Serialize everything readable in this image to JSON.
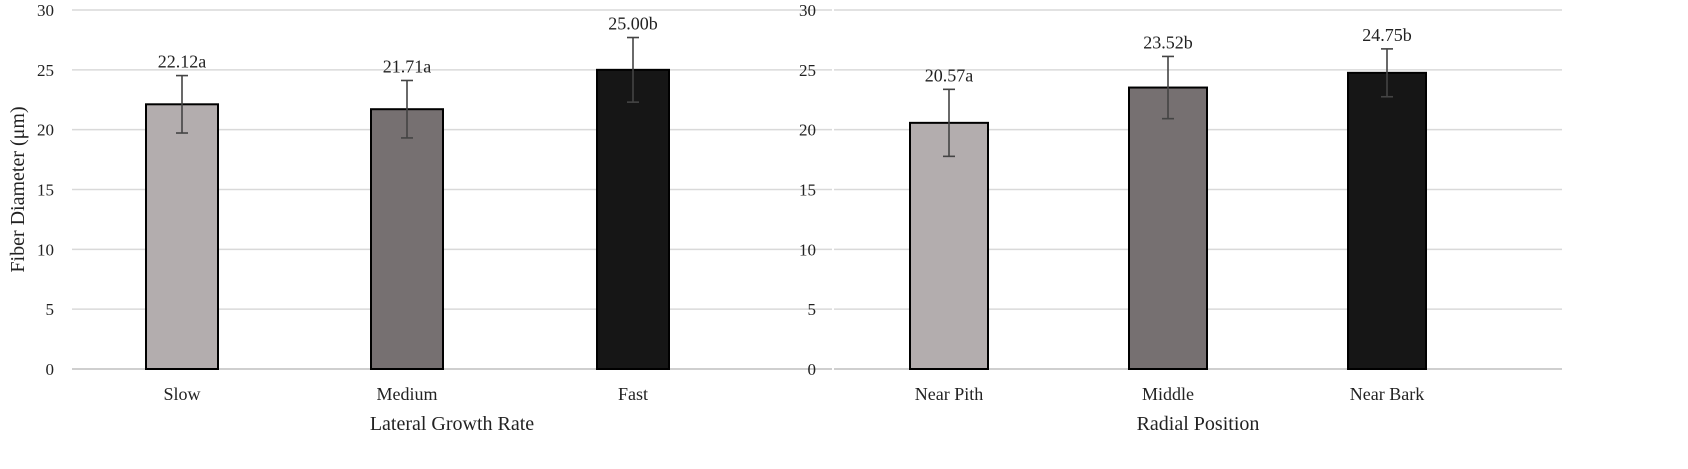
{
  "chart_data": [
    {
      "type": "bar",
      "categories": [
        "Slow",
        "Medium",
        "Fast"
      ],
      "values": [
        22.12,
        21.71,
        25.0
      ],
      "errors": [
        2.4,
        2.4,
        2.7
      ],
      "data_labels": [
        "22.12a",
        "21.71a",
        "25.00b"
      ],
      "colors": [
        "#b3adae",
        "#767071",
        "#161616"
      ],
      "xlabel": "Lateral Growth Rate",
      "ylabel": "Fiber Diameter (μm)",
      "ylim": [
        0,
        30
      ],
      "yticks": [
        "0",
        "5",
        "10",
        "15",
        "20",
        "25",
        "30"
      ],
      "grid": true
    },
    {
      "type": "bar",
      "categories": [
        "Near Pith",
        "Middle",
        "Near Bark"
      ],
      "values": [
        20.57,
        23.52,
        24.75
      ],
      "errors": [
        2.8,
        2.6,
        2.0
      ],
      "data_labels": [
        "20.57a",
        "23.52b",
        "24.75b"
      ],
      "colors": [
        "#b3adae",
        "#767071",
        "#161616"
      ],
      "xlabel": "Radial Position",
      "ylabel": "",
      "ylim": [
        0,
        30
      ],
      "yticks": [
        "0",
        "5",
        "10",
        "15",
        "20",
        "25",
        "30"
      ],
      "grid": true
    }
  ]
}
